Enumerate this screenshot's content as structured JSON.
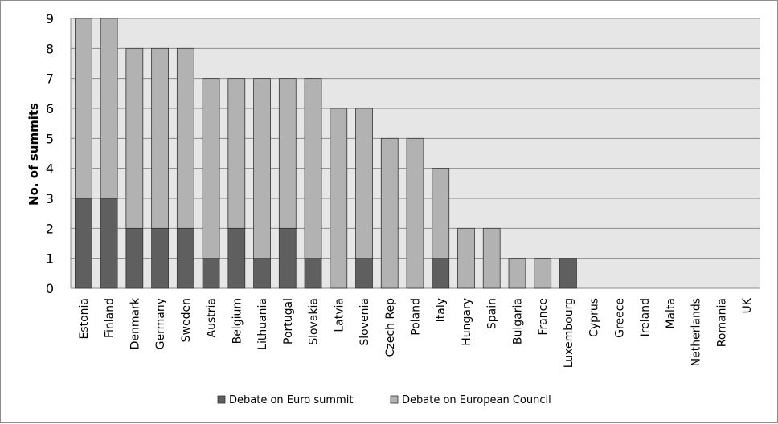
{
  "chart_data": {
    "type": "bar",
    "stacked": true,
    "title": "",
    "xlabel": "",
    "ylabel": "No. of summits",
    "ylim": [
      0,
      9
    ],
    "yticks": [
      0,
      1,
      2,
      3,
      4,
      5,
      6,
      7,
      8,
      9
    ],
    "grid": true,
    "legend_position": "bottom",
    "categories": [
      "Estonia",
      "Finland",
      "Denmark",
      "Germany",
      "Sweden",
      "Austria",
      "Belgium",
      "Lithuania",
      "Portugal",
      "Slovakia",
      "Latvia",
      "Slovenia",
      "Czech Rep",
      "Poland",
      "Italy",
      "Hungary",
      "Spain",
      "Bulgaria",
      "France",
      "Luxembourg",
      "Cyprus",
      "Greece",
      "Ireland",
      "Malta",
      "Netherlands",
      "Romania",
      "UK"
    ],
    "series": [
      {
        "name": "Debate on Euro summit",
        "color": "#5f5f5f",
        "values": [
          3,
          3,
          2,
          2,
          2,
          1,
          2,
          1,
          2,
          1,
          0,
          1,
          0,
          0,
          1,
          0,
          0,
          0,
          0,
          1,
          0,
          0,
          0,
          0,
          0,
          0,
          0
        ]
      },
      {
        "name": "Debate on European Council",
        "color": "#b2b2b2",
        "values": [
          6,
          6,
          6,
          6,
          6,
          6,
          5,
          6,
          5,
          6,
          6,
          5,
          5,
          5,
          3,
          2,
          2,
          1,
          1,
          0,
          0,
          0,
          0,
          0,
          0,
          0,
          0
        ]
      }
    ],
    "plot_background": "#e6e6e6"
  }
}
